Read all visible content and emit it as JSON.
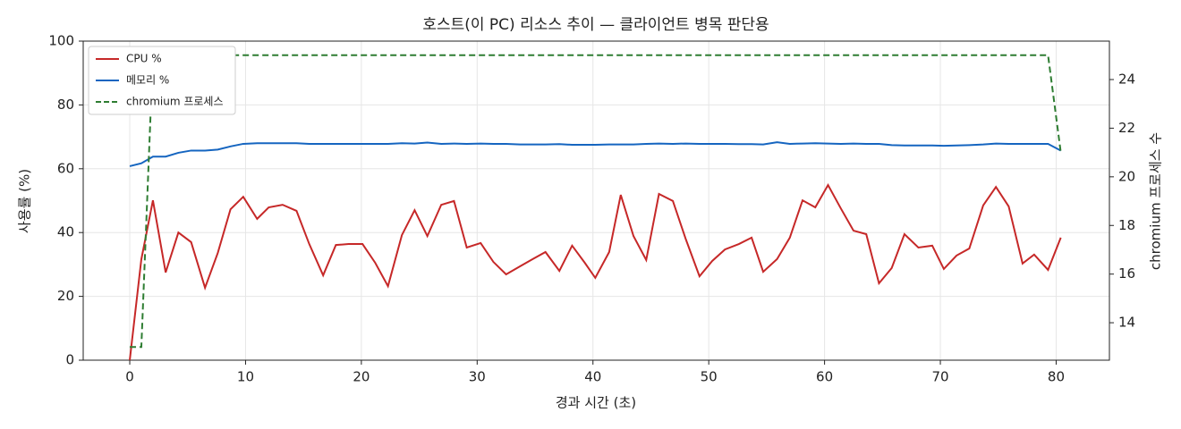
{
  "chart_data": {
    "type": "line",
    "title": "호스트(이 PC) 리소스 추이 — 클라이언트 병목 판단용",
    "xlabel": "경과 시간 (초)",
    "ylabel": "사용률 (%)",
    "y2label": "chromium 프로세스 수",
    "x": [
      0,
      1.0,
      2.0,
      3.1,
      4.2,
      5.3,
      6.5,
      7.6,
      8.7,
      9.8,
      11.0,
      12.0,
      13.2,
      14.4,
      15.5,
      16.7,
      17.8,
      18.9,
      20.1,
      21.2,
      22.3,
      23.5,
      24.6,
      25.7,
      26.9,
      28.0,
      29.1,
      30.3,
      31.4,
      32.5,
      33.7,
      34.8,
      35.9,
      37.1,
      38.2,
      39.3,
      40.2,
      41.4,
      42.4,
      43.5,
      44.6,
      45.7,
      46.9,
      48.0,
      49.2,
      50.3,
      51.4,
      52.6,
      53.7,
      54.7,
      55.9,
      57.0,
      58.1,
      59.2,
      60.3,
      61.4,
      62.5,
      63.6,
      64.7,
      65.8,
      66.9,
      68.1,
      69.3,
      70.3,
      71.4,
      72.5,
      73.7,
      74.8,
      75.9,
      77.1,
      78.1,
      79.3,
      80.4
    ],
    "series": [
      {
        "name": "CPU %",
        "color": "#c62828",
        "linestyle": "solid",
        "values": [
          0,
          31.6,
          50.1,
          27.5,
          40,
          37,
          22.7,
          33.6,
          47.3,
          51.2,
          44.3,
          47.9,
          48.7,
          46.8,
          36.4,
          26.6,
          36.1,
          36.4,
          36.4,
          30.5,
          23.2,
          39.2,
          47,
          38.9,
          48.7,
          49.9,
          35.3,
          36.7,
          30.8,
          26.9,
          29.4,
          31.7,
          33.9,
          28,
          35.9,
          30.5,
          25.8,
          33.9,
          51.8,
          38.9,
          31.4,
          52.1,
          49.9,
          38.1,
          26.3,
          31.1,
          34.7,
          36.4,
          38.4,
          27.7,
          31.7,
          38.4,
          50.1,
          47.9,
          54.9,
          47.6,
          40.6,
          39.5,
          24.1,
          28.9,
          39.5,
          35.3,
          35.9,
          28.6,
          32.8,
          35,
          48.5,
          54.3,
          48.2,
          30.3,
          33.1,
          28.3,
          38.4
        ]
      },
      {
        "name": "메모리 %",
        "color": "#1565c0",
        "linestyle": "solid",
        "values": [
          60.8,
          61.7,
          63.8,
          63.8,
          65,
          65.7,
          65.7,
          66,
          67,
          67.8,
          68,
          68,
          68,
          68,
          67.8,
          67.8,
          67.8,
          67.8,
          67.8,
          67.8,
          67.8,
          68,
          67.9,
          68.2,
          67.8,
          67.9,
          67.8,
          67.9,
          67.8,
          67.8,
          67.6,
          67.6,
          67.6,
          67.7,
          67.5,
          67.5,
          67.5,
          67.6,
          67.6,
          67.6,
          67.8,
          67.9,
          67.8,
          67.9,
          67.8,
          67.8,
          67.8,
          67.7,
          67.7,
          67.6,
          68.3,
          67.8,
          67.9,
          68,
          67.9,
          67.8,
          67.9,
          67.8,
          67.8,
          67.4,
          67.3,
          67.3,
          67.3,
          67.2,
          67.3,
          67.4,
          67.6,
          67.9,
          67.8,
          67.8,
          67.8,
          67.8,
          65.7
        ]
      },
      {
        "name": "chromium 프로세스",
        "color": "#2e7d32",
        "linestyle": "dashed",
        "axis": "y2",
        "values": [
          13,
          13,
          25,
          25,
          25,
          25,
          25,
          25,
          25,
          25,
          25,
          25,
          25,
          25,
          25,
          25,
          25,
          25,
          25,
          25,
          25,
          25,
          25,
          25,
          25,
          25,
          25,
          25,
          25,
          25,
          25,
          25,
          25,
          25,
          25,
          25,
          25,
          25,
          25,
          25,
          25,
          25,
          25,
          25,
          25,
          25,
          25,
          25,
          25,
          25,
          25,
          25,
          25,
          25,
          25,
          25,
          25,
          25,
          25,
          25,
          25,
          25,
          25,
          25,
          25,
          25,
          25,
          25,
          25,
          25,
          25,
          25,
          21
        ]
      }
    ],
    "xlim": [
      -4.02,
      84.6
    ],
    "xticks": [
      0,
      10,
      20,
      30,
      40,
      50,
      60,
      70,
      80
    ],
    "ylim": [
      0,
      100
    ],
    "yticks": [
      0,
      20,
      40,
      60,
      80,
      100
    ],
    "y2lim": [
      12.46,
      25.58
    ],
    "y2ticks": [
      14,
      16,
      18,
      20,
      22,
      24
    ],
    "grid": true,
    "legend": "upper left"
  }
}
